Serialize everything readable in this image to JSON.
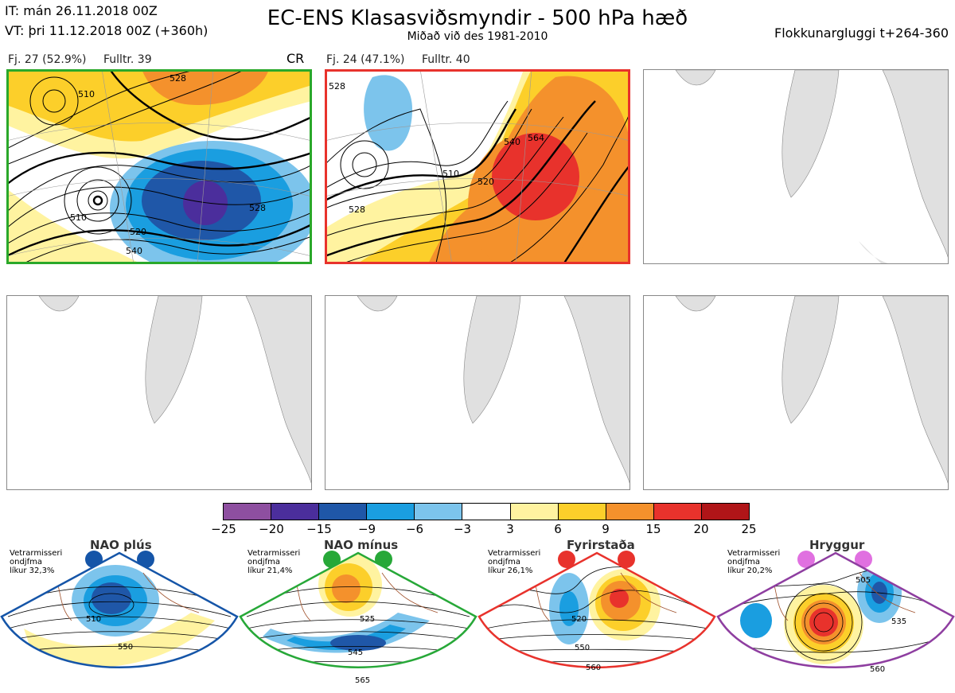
{
  "header": {
    "it_line": "IT: mán 26.11.2018 00Z",
    "vt_line": "VT: þri 11.12.2018 00Z  (+360h)",
    "title": "EC-ENS Klasasviðsmyndir - 500 hPa hæð",
    "subtitle": "Miðað við des 1981-2010",
    "window": "Flokkunargluggi t+264-360"
  },
  "panels": [
    {
      "count": "Fj. 27 (52.9%)",
      "rep": "Fulltr. 39",
      "code": "CR",
      "border": "#2aa82a",
      "contours": [
        "510",
        "528",
        "540",
        "520",
        "510",
        "528"
      ]
    },
    {
      "count": "Fj. 24 (47.1%)",
      "rep": "Fulltr. 40",
      "border": "#e8322c",
      "contours": [
        "528",
        "510",
        "520",
        "540",
        "564",
        "528"
      ]
    }
  ],
  "colorbar": {
    "ticks": [
      "−25",
      "−20",
      "−15",
      "−9",
      "−6",
      "−3",
      "3",
      "6",
      "9",
      "15",
      "20",
      "25"
    ],
    "colors": [
      "#8e4fa0",
      "#4b2e9c",
      "#1f57a8",
      "#1a9ee0",
      "#7cc4ec",
      "#ffffff",
      "#fff3a0",
      "#fccf2a",
      "#f4912c",
      "#e8322c",
      "#b01518"
    ]
  },
  "regimes": [
    {
      "name": "NAO plús",
      "line1": "Vetrarmisseri",
      "line2": "ondjfma",
      "line3": "líkur 32,3%",
      "color": "#1555a8",
      "labels": [
        "510",
        "550"
      ]
    },
    {
      "name": "NAO mínus",
      "line1": "Vetrarmisseri",
      "line2": "ondjfma",
      "line3": "líkur 21,4%",
      "color": "#27a838",
      "labels": [
        "525",
        "545",
        "565"
      ]
    },
    {
      "name": "Fyrirstaða",
      "line1": "Vetrarmisseri",
      "line2": "ondjfma",
      "line3": "líkur 26,1%",
      "color": "#e8322c",
      "labels": [
        "520",
        "550",
        "560"
      ]
    },
    {
      "name": "Hryggur",
      "line1": "Vetrarmisseri",
      "line2": "ondjfma",
      "line3": "líkur 20,2%",
      "color": "#e070e0",
      "labels": [
        "505",
        "535",
        "560"
      ]
    }
  ]
}
